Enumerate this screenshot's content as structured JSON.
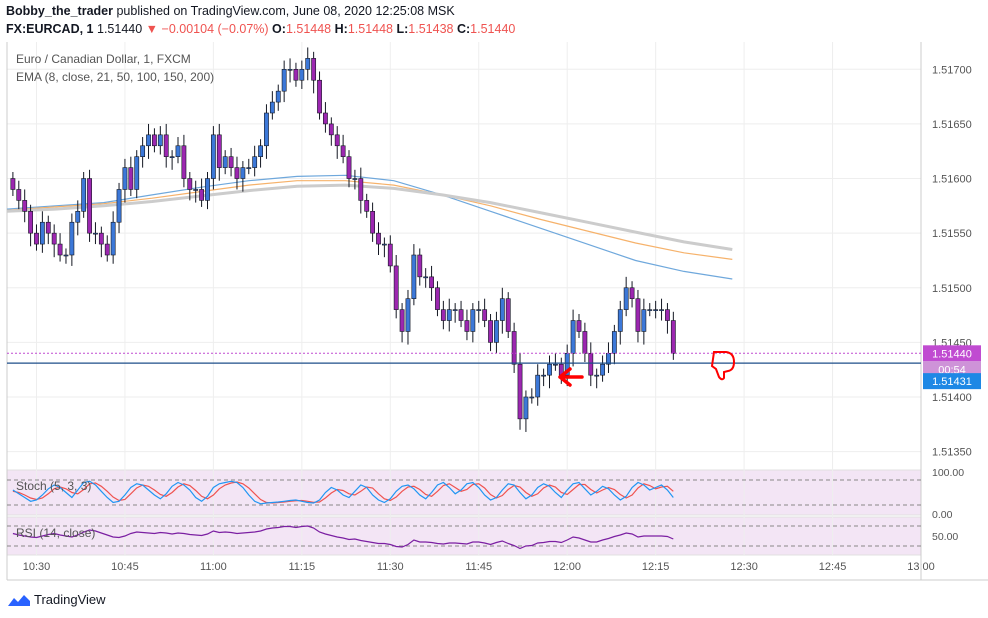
{
  "header": {
    "author": "Bobby_the_trader",
    "published_text": "published on TradingView.com, June 08, 2020 12:25:08 MSK",
    "symbol_label": "FX:EURCAD, 1",
    "last": "1.51440",
    "change": "−0.00104 (−0.07%)",
    "o_label": "O:",
    "o": "1.51448",
    "h_label": "H:",
    "h": "1.51448",
    "l_label": "L:",
    "l": "1.51438",
    "c_label": "C:",
    "c": "1.51440"
  },
  "legend": {
    "title": "Euro / Canadian Dollar, 1, FXCM",
    "ema": "EMA (8, close, 21, 50, 100, 150, 200)",
    "stoch": "Stoch (5, 3, 3)",
    "rsi": "RSI (14, close)"
  },
  "footer": {
    "brand": "TradingView"
  },
  "colors": {
    "up": "#3c78d8",
    "down": "#9c27b0",
    "ema_blue": "#6fa8dc",
    "ema_orange": "#f6b26b",
    "ema_gray": "#cccccc",
    "stoch_k": "#2196f3",
    "stoch_d": "#ef5350",
    "rsi": "#7b1fa2",
    "price_line": "#1e4f8a",
    "last_tag": "#c04bd1",
    "level_tag": "#1e88e5",
    "arrow": "#ff0000"
  },
  "chart_data": {
    "type": "candlestick",
    "price_axis": {
      "ticks": [
        1.5135,
        1.514,
        1.5145,
        1.515,
        1.5155,
        1.516,
        1.5165,
        1.517
      ],
      "tick_labels": [
        "1.51350",
        "1.51400",
        "1.51450",
        "1.51500",
        "1.51550",
        "1.51600",
        "1.51650",
        "1.51700"
      ],
      "range": [
        1.51335,
        1.51725
      ]
    },
    "time_axis": {
      "ticks": [
        "10:30",
        "10:45",
        "11:00",
        "11:15",
        "11:30",
        "11:45",
        "12:00",
        "12:15",
        "12:30",
        "12:45",
        "13:00"
      ],
      "range": [
        "10:25",
        "13:00"
      ]
    },
    "last_price_tag": "1.51440",
    "countdown_tag": "00:54",
    "level_tag": "1.51431",
    "level_value": 1.51431,
    "candle_closes": [
      1.5159,
      1.5158,
      1.5157,
      1.5155,
      1.5154,
      1.5156,
      1.5155,
      1.5154,
      1.5153,
      1.5153,
      1.5156,
      1.5157,
      1.516,
      1.5155,
      1.5155,
      1.5154,
      1.5153,
      1.5156,
      1.5159,
      1.5161,
      1.5159,
      1.5162,
      1.5163,
      1.5164,
      1.5163,
      1.5164,
      1.5162,
      1.5162,
      1.5163,
      1.516,
      1.5159,
      1.5159,
      1.5158,
      1.516,
      1.5164,
      1.5161,
      1.5162,
      1.5161,
      1.516,
      1.5161,
      1.5161,
      1.5162,
      1.5163,
      1.5166,
      1.5167,
      1.5168,
      1.517,
      1.517,
      1.5169,
      1.517,
      1.5171,
      1.5169,
      1.5166,
      1.5165,
      1.5164,
      1.5163,
      1.5162,
      1.516,
      1.516,
      1.5158,
      1.5157,
      1.5155,
      1.5154,
      1.5154,
      1.5152,
      1.5148,
      1.5146,
      1.5149,
      1.5153,
      1.5151,
      1.5151,
      1.515,
      1.5148,
      1.5147,
      1.5148,
      1.5148,
      1.5147,
      1.5146,
      1.5148,
      1.5148,
      1.5147,
      1.5145,
      1.5147,
      1.5149,
      1.5146,
      1.5143,
      1.5138,
      1.514,
      1.514,
      1.5142,
      1.5142,
      1.5143,
      1.5143,
      1.5142,
      1.5144,
      1.5147,
      1.5146,
      1.5144,
      1.5142,
      1.5142,
      1.5143,
      1.5144,
      1.5146,
      1.5148,
      1.515,
      1.5149,
      1.5146,
      1.5148,
      1.5148,
      1.5148,
      1.5148,
      1.5147,
      1.5144
    ],
    "candle_opens_start": 1.516,
    "ema_series": [
      {
        "color": "blue",
        "values": [
          1.51572,
          1.51575,
          1.51578,
          1.51585,
          1.51592,
          1.51598,
          1.51602,
          1.51603,
          1.51598,
          1.51585,
          1.5157,
          1.51555,
          1.5154,
          1.51525,
          1.51515,
          1.51508
        ]
      },
      {
        "color": "orange",
        "values": [
          1.51571,
          1.51574,
          1.51577,
          1.51582,
          1.51588,
          1.51594,
          1.51598,
          1.51598,
          1.51594,
          1.51585,
          1.51575,
          1.51563,
          1.51552,
          1.51541,
          1.51532,
          1.51526
        ]
      },
      {
        "color": "gray",
        "values": [
          1.5157,
          1.51572,
          1.51575,
          1.51579,
          1.51584,
          1.51589,
          1.51593,
          1.51594,
          1.51591,
          1.51585,
          1.51578,
          1.51569,
          1.5156,
          1.51551,
          1.51542,
          1.51535
        ]
      }
    ],
    "stoch": {
      "axis_labels": [
        "100.00",
        "0.00"
      ],
      "k": [
        60,
        45,
        30,
        15,
        20,
        40,
        65,
        80,
        70,
        50,
        30,
        60,
        90,
        95,
        80,
        55,
        30,
        10,
        15,
        40,
        70,
        85,
        80,
        60,
        40,
        25,
        45,
        75,
        90,
        80,
        60,
        30,
        15,
        35,
        70,
        85,
        90,
        95,
        90,
        70,
        40,
        15,
        5,
        8,
        10,
        12,
        15,
        18,
        20,
        15,
        10,
        8,
        20,
        50,
        70,
        60,
        40,
        30,
        55,
        80,
        70,
        40,
        20,
        10,
        25,
        55,
        75,
        80,
        65,
        40,
        25,
        50,
        80,
        90,
        70,
        45,
        60,
        85,
        90,
        70,
        40,
        20,
        30,
        60,
        85,
        80,
        50,
        25,
        40,
        70,
        85,
        75,
        50,
        30,
        60,
        85,
        90,
        65,
        40,
        55,
        75,
        65,
        40,
        20,
        35,
        70,
        90,
        80,
        60,
        70,
        80,
        60,
        30
      ],
      "d": [
        55,
        50,
        40,
        28,
        22,
        28,
        45,
        65,
        72,
        65,
        50,
        45,
        62,
        85,
        88,
        75,
        55,
        32,
        18,
        22,
        45,
        68,
        80,
        75,
        60,
        42,
        35,
        50,
        72,
        85,
        78,
        58,
        35,
        25,
        40,
        65,
        80,
        88,
        92,
        85,
        68,
        45,
        22,
        10,
        8,
        10,
        12,
        15,
        17,
        18,
        15,
        11,
        12,
        28,
        48,
        62,
        58,
        45,
        40,
        55,
        72,
        68,
        45,
        25,
        18,
        32,
        55,
        72,
        75,
        62,
        42,
        35,
        55,
        78,
        85,
        70,
        55,
        62,
        82,
        85,
        68,
        42,
        28,
        38,
        62,
        78,
        72,
        50,
        35,
        45,
        68,
        80,
        72,
        50,
        42,
        62,
        82,
        82,
        62,
        48,
        60,
        70,
        62,
        42,
        28,
        40,
        68,
        85,
        78,
        65,
        72,
        75,
        55
      ]
    },
    "rsi": {
      "axis_labels": [
        "50.00"
      ],
      "bands": [
        70,
        30
      ],
      "values": [
        55,
        52,
        50,
        48,
        47,
        50,
        53,
        55,
        52,
        50,
        48,
        52,
        58,
        62,
        60,
        56,
        52,
        48,
        47,
        50,
        55,
        58,
        57,
        56,
        55,
        57,
        56,
        54,
        56,
        55,
        53,
        52,
        51,
        54,
        60,
        57,
        58,
        57,
        55,
        56,
        57,
        58,
        60,
        64,
        66,
        67,
        69,
        69,
        67,
        69,
        70,
        66,
        58,
        54,
        51,
        48,
        46,
        43,
        44,
        41,
        39,
        37,
        35,
        35,
        33,
        29,
        28,
        33,
        42,
        38,
        38,
        37,
        35,
        34,
        36,
        36,
        35,
        34,
        38,
        38,
        36,
        33,
        37,
        40,
        35,
        31,
        25,
        30,
        31,
        36,
        37,
        39,
        39,
        37,
        42,
        48,
        46,
        42,
        38,
        38,
        42,
        45,
        49,
        52,
        56,
        54,
        48,
        50,
        50,
        50,
        50,
        49,
        44
      ]
    }
  }
}
